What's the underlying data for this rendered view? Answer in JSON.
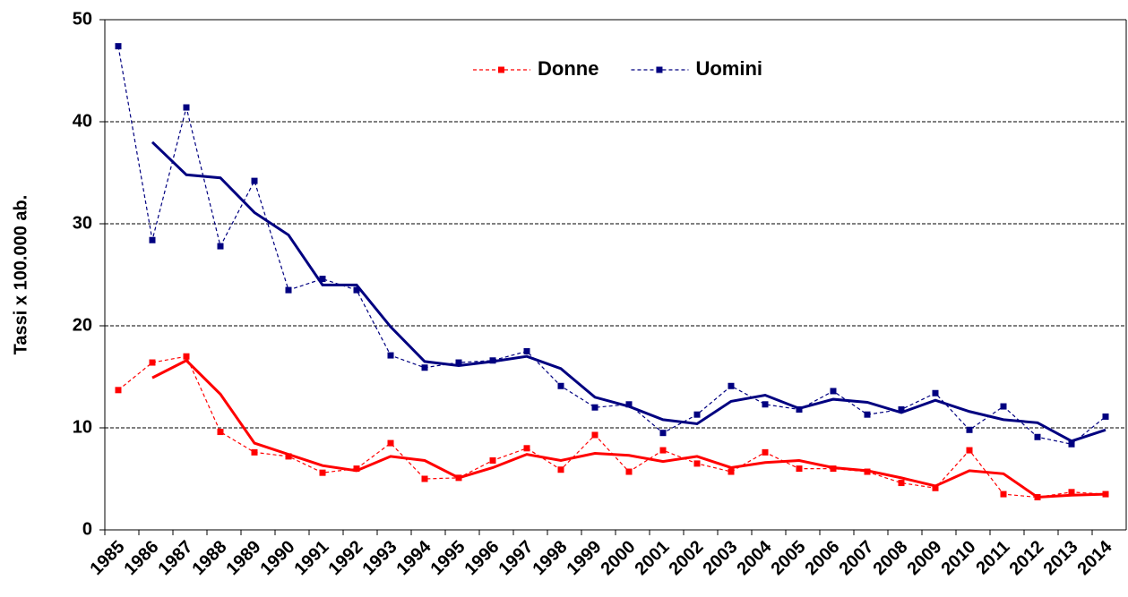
{
  "chart_data": {
    "type": "line",
    "y_label": "Tassi x 100.000 ab.",
    "categories": [
      "1985",
      "1986",
      "1987",
      "1988",
      "1989",
      "1990",
      "1991",
      "1992",
      "1993",
      "1994",
      "1995",
      "1996",
      "1997",
      "1998",
      "1999",
      "2000",
      "2001",
      "2002",
      "2003",
      "2004",
      "2005",
      "2006",
      "2007",
      "2008",
      "2009",
      "2010",
      "2011",
      "2012",
      "2013",
      "2014"
    ],
    "series": [
      {
        "name": "Donne",
        "color": "#ff0000",
        "style": "dashed",
        "markers": true,
        "values": [
          13.7,
          16.4,
          17.0,
          9.6,
          7.6,
          7.2,
          5.6,
          6.0,
          8.5,
          5.0,
          5.1,
          6.8,
          8.0,
          5.9,
          9.3,
          5.7,
          7.8,
          6.5,
          5.7,
          7.6,
          6.0,
          6.0,
          5.7,
          4.6,
          4.1,
          7.8,
          3.5,
          3.2,
          3.7,
          3.5
        ]
      },
      {
        "name": "Uomini",
        "color": "#000080",
        "style": "dashed",
        "markers": true,
        "values": [
          47.4,
          28.4,
          41.4,
          27.8,
          34.2,
          23.5,
          24.6,
          23.5,
          17.1,
          15.9,
          16.4,
          16.6,
          17.5,
          14.1,
          12.0,
          12.3,
          9.5,
          11.3,
          14.1,
          12.3,
          11.8,
          13.6,
          11.3,
          11.8,
          13.4,
          9.8,
          12.1,
          9.1,
          8.4,
          11.1
        ]
      },
      {
        "color": "#ff0000",
        "style": "solid",
        "markers": false,
        "values": [
          null,
          14.9,
          16.6,
          13.3,
          8.5,
          7.4,
          6.3,
          5.8,
          7.2,
          6.8,
          5.1,
          6.1,
          7.4,
          6.8,
          7.5,
          7.3,
          6.7,
          7.2,
          6.1,
          6.6,
          6.8,
          6.1,
          5.8,
          5.1,
          4.3,
          5.8,
          5.5,
          3.2,
          3.4,
          3.5
        ]
      },
      {
        "color": "#000080",
        "style": "solid",
        "markers": false,
        "values": [
          null,
          38.0,
          34.8,
          34.5,
          31.1,
          28.9,
          24.0,
          24.0,
          19.9,
          16.5,
          16.1,
          16.5,
          17.0,
          15.8,
          13.0,
          12.1,
          10.8,
          10.4,
          12.6,
          13.2,
          11.9,
          12.8,
          12.5,
          11.5,
          12.7,
          11.6,
          10.8,
          10.5,
          8.7,
          9.8
        ]
      }
    ],
    "ylim": [
      0,
      50
    ],
    "yticks": [
      0,
      10,
      20,
      30,
      40,
      50
    ],
    "grid": true,
    "legend": "top"
  }
}
